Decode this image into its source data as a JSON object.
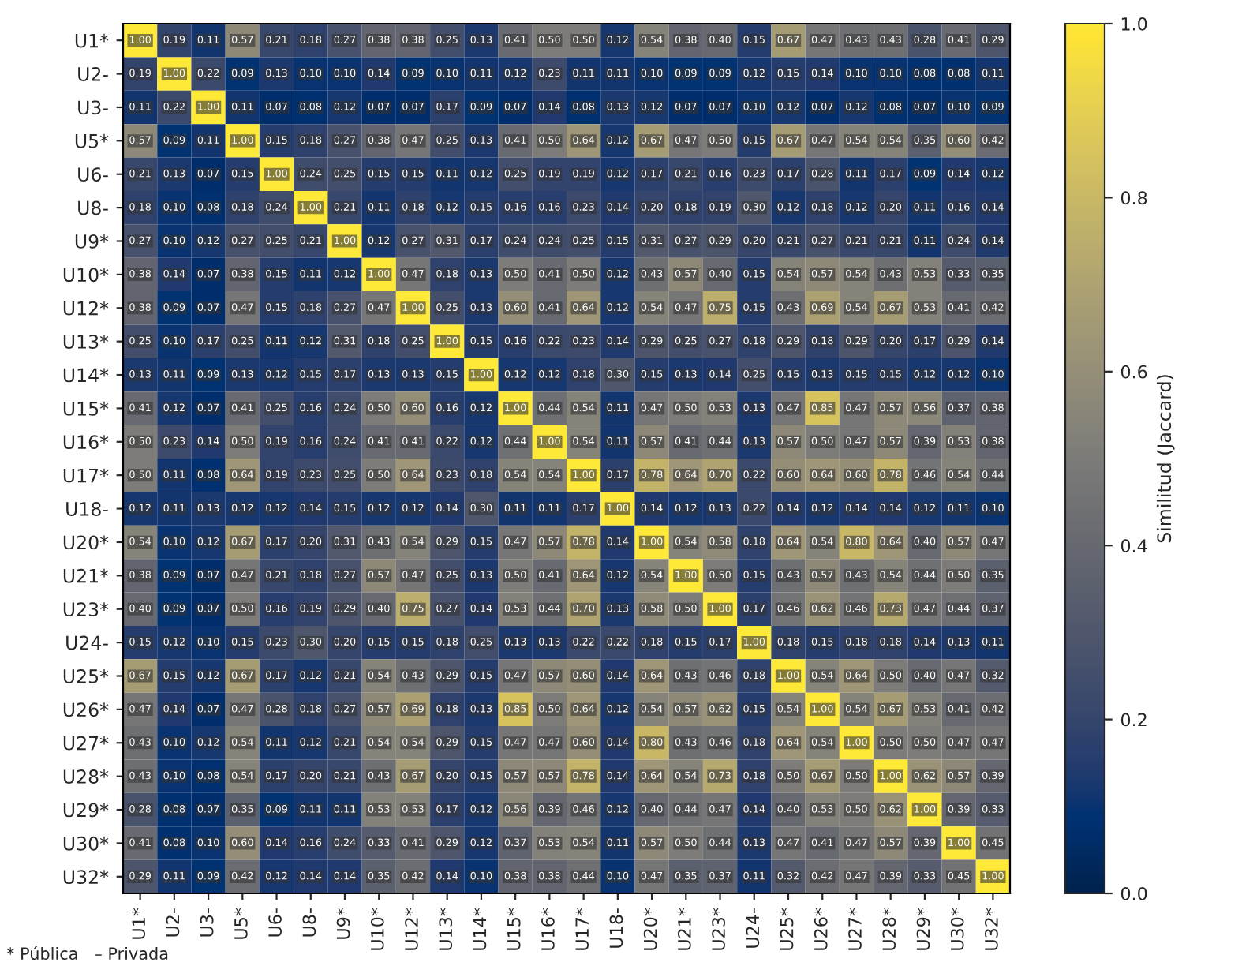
{
  "chart_data": {
    "type": "heatmap",
    "clabel": "Similitud (Jaccard)",
    "clim": [
      0,
      1
    ],
    "cticks": [
      {
        "value": 0,
        "label": "0.0"
      },
      {
        "value": 0.2,
        "label": "0.2"
      },
      {
        "value": 0.4,
        "label": "0.4"
      },
      {
        "value": 0.6,
        "label": "0.6"
      },
      {
        "value": 0.8,
        "label": "0.8"
      },
      {
        "value": 1,
        "label": "1.0"
      }
    ],
    "cell_labels": [
      [
        "1.00",
        "0.19",
        "0.11",
        "0.57",
        "0.21",
        "0.18",
        "0.27",
        "0.38",
        "0.38",
        "0.25",
        "0.13",
        "0.41",
        "0.50",
        "0.50",
        "0.12",
        "0.54",
        "0.38",
        "0.40",
        "0.15",
        "0.67",
        "0.47",
        "0.43",
        "0.43",
        "0.28",
        "0.41",
        "0.29"
      ],
      [
        "0.19",
        "1.00",
        "0.22",
        "0.09",
        "0.13",
        "0.10",
        "0.10",
        "0.14",
        "0.09",
        "0.10",
        "0.11",
        "0.12",
        "0.23",
        "0.11",
        "0.11",
        "0.10",
        "0.09",
        "0.09",
        "0.12",
        "0.15",
        "0.14",
        "0.10",
        "0.10",
        "0.08",
        "0.08",
        "0.11"
      ],
      [
        "0.11",
        "0.22",
        "1.00",
        "0.11",
        "0.07",
        "0.08",
        "0.12",
        "0.07",
        "0.07",
        "0.17",
        "0.09",
        "0.07",
        "0.14",
        "0.08",
        "0.13",
        "0.12",
        "0.07",
        "0.07",
        "0.10",
        "0.12",
        "0.07",
        "0.12",
        "0.08",
        "0.07",
        "0.10",
        "0.09"
      ],
      [
        "0.57",
        "0.09",
        "0.11",
        "1.00",
        "0.15",
        "0.18",
        "0.27",
        "0.38",
        "0.47",
        "0.25",
        "0.13",
        "0.41",
        "0.50",
        "0.64",
        "0.12",
        "0.67",
        "0.47",
        "0.50",
        "0.15",
        "0.67",
        "0.47",
        "0.54",
        "0.54",
        "0.35",
        "0.60",
        "0.42"
      ],
      [
        "0.21",
        "0.13",
        "0.07",
        "0.15",
        "1.00",
        "0.24",
        "0.25",
        "0.15",
        "0.15",
        "0.11",
        "0.12",
        "0.25",
        "0.19",
        "0.19",
        "0.12",
        "0.17",
        "0.21",
        "0.16",
        "0.23",
        "0.17",
        "0.28",
        "0.11",
        "0.17",
        "0.09",
        "0.14",
        "0.12"
      ],
      [
        "0.18",
        "0.10",
        "0.08",
        "0.18",
        "0.24",
        "1.00",
        "0.21",
        "0.11",
        "0.18",
        "0.12",
        "0.15",
        "0.16",
        "0.16",
        "0.23",
        "0.14",
        "0.20",
        "0.18",
        "0.19",
        "0.30",
        "0.12",
        "0.18",
        "0.12",
        "0.20",
        "0.11",
        "0.16",
        "0.14"
      ],
      [
        "0.27",
        "0.10",
        "0.12",
        "0.27",
        "0.25",
        "0.21",
        "1.00",
        "0.12",
        "0.27",
        "0.31",
        "0.17",
        "0.24",
        "0.24",
        "0.25",
        "0.15",
        "0.31",
        "0.27",
        "0.29",
        "0.20",
        "0.21",
        "0.27",
        "0.21",
        "0.21",
        "0.11",
        "0.24",
        "0.14"
      ],
      [
        "0.38",
        "0.14",
        "0.07",
        "0.38",
        "0.15",
        "0.11",
        "0.12",
        "1.00",
        "0.47",
        "0.18",
        "0.13",
        "0.50",
        "0.41",
        "0.50",
        "0.12",
        "0.43",
        "0.57",
        "0.40",
        "0.15",
        "0.54",
        "0.57",
        "0.54",
        "0.43",
        "0.53",
        "0.33",
        "0.35"
      ],
      [
        "0.38",
        "0.09",
        "0.07",
        "0.47",
        "0.15",
        "0.18",
        "0.27",
        "0.47",
        "1.00",
        "0.25",
        "0.13",
        "0.60",
        "0.41",
        "0.64",
        "0.12",
        "0.54",
        "0.47",
        "0.75",
        "0.15",
        "0.43",
        "0.69",
        "0.54",
        "0.67",
        "0.53",
        "0.41",
        "0.42"
      ],
      [
        "0.25",
        "0.10",
        "0.17",
        "0.25",
        "0.11",
        "0.12",
        "0.31",
        "0.18",
        "0.25",
        "1.00",
        "0.15",
        "0.16",
        "0.22",
        "0.23",
        "0.14",
        "0.29",
        "0.25",
        "0.27",
        "0.18",
        "0.29",
        "0.18",
        "0.29",
        "0.20",
        "0.17",
        "0.29",
        "0.14"
      ],
      [
        "0.13",
        "0.11",
        "0.09",
        "0.13",
        "0.12",
        "0.15",
        "0.17",
        "0.13",
        "0.13",
        "0.15",
        "1.00",
        "0.12",
        "0.12",
        "0.18",
        "0.30",
        "0.15",
        "0.13",
        "0.14",
        "0.25",
        "0.15",
        "0.13",
        "0.15",
        "0.15",
        "0.12",
        "0.12",
        "0.10"
      ],
      [
        "0.41",
        "0.12",
        "0.07",
        "0.41",
        "0.25",
        "0.16",
        "0.24",
        "0.50",
        "0.60",
        "0.16",
        "0.12",
        "1.00",
        "0.44",
        "0.54",
        "0.11",
        "0.47",
        "0.50",
        "0.53",
        "0.13",
        "0.47",
        "0.85",
        "0.47",
        "0.57",
        "0.56",
        "0.37",
        "0.38"
      ],
      [
        "0.50",
        "0.23",
        "0.14",
        "0.50",
        "0.19",
        "0.16",
        "0.24",
        "0.41",
        "0.41",
        "0.22",
        "0.12",
        "0.44",
        "1.00",
        "0.54",
        "0.11",
        "0.57",
        "0.41",
        "0.44",
        "0.13",
        "0.57",
        "0.50",
        "0.47",
        "0.57",
        "0.39",
        "0.53",
        "0.38"
      ],
      [
        "0.50",
        "0.11",
        "0.08",
        "0.64",
        "0.19",
        "0.23",
        "0.25",
        "0.50",
        "0.64",
        "0.23",
        "0.18",
        "0.54",
        "0.54",
        "1.00",
        "0.17",
        "0.78",
        "0.64",
        "0.70",
        "0.22",
        "0.60",
        "0.64",
        "0.60",
        "0.78",
        "0.46",
        "0.54",
        "0.44"
      ],
      [
        "0.12",
        "0.11",
        "0.13",
        "0.12",
        "0.12",
        "0.14",
        "0.15",
        "0.12",
        "0.12",
        "0.14",
        "0.30",
        "0.11",
        "0.11",
        "0.17",
        "1.00",
        "0.14",
        "0.12",
        "0.13",
        "0.22",
        "0.14",
        "0.12",
        "0.14",
        "0.14",
        "0.12",
        "0.11",
        "0.10"
      ],
      [
        "0.54",
        "0.10",
        "0.12",
        "0.67",
        "0.17",
        "0.20",
        "0.31",
        "0.43",
        "0.54",
        "0.29",
        "0.15",
        "0.47",
        "0.57",
        "0.78",
        "0.14",
        "1.00",
        "0.54",
        "0.58",
        "0.18",
        "0.64",
        "0.54",
        "0.80",
        "0.64",
        "0.40",
        "0.57",
        "0.47"
      ],
      [
        "0.38",
        "0.09",
        "0.07",
        "0.47",
        "0.21",
        "0.18",
        "0.27",
        "0.57",
        "0.47",
        "0.25",
        "0.13",
        "0.50",
        "0.41",
        "0.64",
        "0.12",
        "0.54",
        "1.00",
        "0.50",
        "0.15",
        "0.43",
        "0.57",
        "0.43",
        "0.54",
        "0.44",
        "0.50",
        "0.35"
      ],
      [
        "0.40",
        "0.09",
        "0.07",
        "0.50",
        "0.16",
        "0.19",
        "0.29",
        "0.40",
        "0.75",
        "0.27",
        "0.14",
        "0.53",
        "0.44",
        "0.70",
        "0.13",
        "0.58",
        "0.50",
        "1.00",
        "0.17",
        "0.46",
        "0.62",
        "0.46",
        "0.73",
        "0.47",
        "0.44",
        "0.37"
      ],
      [
        "0.15",
        "0.12",
        "0.10",
        "0.15",
        "0.23",
        "0.30",
        "0.20",
        "0.15",
        "0.15",
        "0.18",
        "0.25",
        "0.13",
        "0.13",
        "0.22",
        "0.22",
        "0.18",
        "0.15",
        "0.17",
        "1.00",
        "0.18",
        "0.15",
        "0.18",
        "0.18",
        "0.14",
        "0.13",
        "0.11"
      ],
      [
        "0.67",
        "0.15",
        "0.12",
        "0.67",
        "0.17",
        "0.12",
        "0.21",
        "0.54",
        "0.43",
        "0.29",
        "0.15",
        "0.47",
        "0.57",
        "0.60",
        "0.14",
        "0.64",
        "0.43",
        "0.46",
        "0.18",
        "1.00",
        "0.54",
        "0.64",
        "0.50",
        "0.40",
        "0.47",
        "0.32"
      ],
      [
        "0.47",
        "0.14",
        "0.07",
        "0.47",
        "0.28",
        "0.18",
        "0.27",
        "0.57",
        "0.69",
        "0.18",
        "0.13",
        "0.85",
        "0.50",
        "0.64",
        "0.12",
        "0.54",
        "0.57",
        "0.62",
        "0.15",
        "0.54",
        "1.00",
        "0.54",
        "0.67",
        "0.53",
        "0.41",
        "0.42"
      ],
      [
        "0.43",
        "0.10",
        "0.12",
        "0.54",
        "0.11",
        "0.12",
        "0.21",
        "0.54",
        "0.54",
        "0.29",
        "0.15",
        "0.47",
        "0.47",
        "0.60",
        "0.14",
        "0.80",
        "0.43",
        "0.46",
        "0.18",
        "0.64",
        "0.54",
        "1.00",
        "0.50",
        "0.50",
        "0.47",
        "0.47"
      ],
      [
        "0.43",
        "0.10",
        "0.08",
        "0.54",
        "0.17",
        "0.20",
        "0.21",
        "0.43",
        "0.67",
        "0.20",
        "0.15",
        "0.57",
        "0.57",
        "0.78",
        "0.14",
        "0.64",
        "0.54",
        "0.73",
        "0.18",
        "0.50",
        "0.67",
        "0.50",
        "1.00",
        "0.62",
        "0.57",
        "0.39"
      ],
      [
        "0.28",
        "0.08",
        "0.07",
        "0.35",
        "0.09",
        "0.11",
        "0.11",
        "0.53",
        "0.53",
        "0.17",
        "0.12",
        "0.56",
        "0.39",
        "0.46",
        "0.12",
        "0.40",
        "0.44",
        "0.47",
        "0.14",
        "0.40",
        "0.53",
        "0.50",
        "0.62",
        "1.00",
        "0.39",
        "0.33"
      ],
      [
        "0.41",
        "0.08",
        "0.10",
        "0.60",
        "0.14",
        "0.16",
        "0.24",
        "0.33",
        "0.41",
        "0.29",
        "0.12",
        "0.37",
        "0.53",
        "0.54",
        "0.11",
        "0.57",
        "0.50",
        "0.44",
        "0.13",
        "0.47",
        "0.41",
        "0.47",
        "0.57",
        "0.39",
        "1.00",
        "0.45"
      ],
      [
        "0.29",
        "0.11",
        "0.09",
        "0.42",
        "0.12",
        "0.14",
        "0.14",
        "0.35",
        "0.42",
        "0.14",
        "0.10",
        "0.38",
        "0.38",
        "0.44",
        "0.10",
        "0.47",
        "0.35",
        "0.37",
        "0.11",
        "0.32",
        "0.42",
        "0.47",
        "0.39",
        "0.33",
        "0.45",
        "1.00"
      ]
    ],
    "annotations": [
      "* Pública   – Privada"
    ],
    "categories": [
      "U1*",
      "U2-",
      "U3-",
      "U5*",
      "U6-",
      "U8-",
      "U9*",
      "U10*",
      "U12*",
      "U13*",
      "U14*",
      "U15*",
      "U16*",
      "U17*",
      "U18-",
      "U20*",
      "U21*",
      "U23*",
      "U24-",
      "U25*",
      "U26*",
      "U27*",
      "U28*",
      "U29*",
      "U30*",
      "U32*"
    ],
    "y_categories": [
      "U1*",
      "U2-",
      "U3-",
      "U5*",
      "U6-",
      "U8-",
      "U9*",
      "U10*",
      "U12*",
      "U13*",
      "U14*",
      "U15*",
      "U16*",
      "U17*",
      "U18-",
      "U20*",
      "U21*",
      "U23*",
      "U24-",
      "U25*",
      "U26*",
      "U27*",
      "U28*",
      "U29*",
      "U30*",
      "U32*"
    ],
    "cells": [
      [
        1.0,
        0.19,
        0.11,
        0.57,
        0.21,
        0.18,
        0.27,
        0.38,
        0.38,
        0.25,
        0.13,
        0.41,
        0.5,
        0.5,
        0.12,
        0.54,
        0.38,
        0.4,
        0.15,
        0.67,
        0.47,
        0.43,
        0.43,
        0.28,
        0.41,
        0.29
      ],
      [
        0.19,
        1.0,
        0.22,
        0.09,
        0.13,
        0.1,
        0.1,
        0.14,
        0.09,
        0.1,
        0.11,
        0.12,
        0.23,
        0.11,
        0.11,
        0.1,
        0.09,
        0.09,
        0.12,
        0.15,
        0.14,
        0.1,
        0.1,
        0.08,
        0.08,
        0.11
      ],
      [
        0.11,
        0.22,
        1.0,
        0.11,
        0.07,
        0.08,
        0.12,
        0.07,
        0.07,
        0.17,
        0.09,
        0.07,
        0.14,
        0.08,
        0.13,
        0.12,
        0.07,
        0.07,
        0.1,
        0.12,
        0.07,
        0.12,
        0.08,
        0.07,
        0.1,
        0.09
      ],
      [
        0.57,
        0.09,
        0.11,
        1.0,
        0.15,
        0.18,
        0.27,
        0.38,
        0.47,
        0.25,
        0.13,
        0.41,
        0.5,
        0.64,
        0.12,
        0.67,
        0.47,
        0.5,
        0.15,
        0.67,
        0.47,
        0.54,
        0.54,
        0.35,
        0.6,
        0.42
      ],
      [
        0.21,
        0.13,
        0.07,
        0.15,
        1.0,
        0.24,
        0.25,
        0.15,
        0.15,
        0.11,
        0.12,
        0.25,
        0.19,
        0.19,
        0.12,
        0.17,
        0.21,
        0.16,
        0.23,
        0.17,
        0.28,
        0.11,
        0.17,
        0.09,
        0.14,
        0.12
      ],
      [
        0.18,
        0.1,
        0.08,
        0.18,
        0.24,
        1.0,
        0.21,
        0.11,
        0.18,
        0.12,
        0.15,
        0.16,
        0.16,
        0.23,
        0.14,
        0.2,
        0.18,
        0.19,
        0.3,
        0.12,
        0.18,
        0.12,
        0.2,
        0.11,
        0.16,
        0.14
      ],
      [
        0.27,
        0.1,
        0.12,
        0.27,
        0.25,
        0.21,
        1.0,
        0.12,
        0.27,
        0.31,
        0.17,
        0.24,
        0.24,
        0.25,
        0.15,
        0.31,
        0.27,
        0.29,
        0.2,
        0.21,
        0.27,
        0.21,
        0.21,
        0.11,
        0.24,
        0.14
      ],
      [
        0.38,
        0.14,
        0.07,
        0.38,
        0.15,
        0.11,
        0.12,
        1.0,
        0.47,
        0.18,
        0.13,
        0.5,
        0.41,
        0.5,
        0.12,
        0.43,
        0.57,
        0.4,
        0.15,
        0.54,
        0.57,
        0.54,
        0.43,
        0.53,
        0.33,
        0.35
      ],
      [
        0.38,
        0.09,
        0.07,
        0.47,
        0.15,
        0.18,
        0.27,
        0.47,
        1.0,
        0.25,
        0.13,
        0.6,
        0.41,
        0.64,
        0.12,
        0.54,
        0.47,
        0.75,
        0.15,
        0.43,
        0.69,
        0.54,
        0.67,
        0.53,
        0.41,
        0.42
      ],
      [
        0.25,
        0.1,
        0.17,
        0.25,
        0.11,
        0.12,
        0.31,
        0.18,
        0.25,
        1.0,
        0.15,
        0.16,
        0.22,
        0.23,
        0.14,
        0.29,
        0.25,
        0.27,
        0.18,
        0.29,
        0.18,
        0.29,
        0.2,
        0.17,
        0.29,
        0.14
      ],
      [
        0.13,
        0.11,
        0.09,
        0.13,
        0.12,
        0.15,
        0.17,
        0.13,
        0.13,
        0.15,
        1.0,
        0.12,
        0.12,
        0.18,
        0.3,
        0.15,
        0.13,
        0.14,
        0.25,
        0.15,
        0.13,
        0.15,
        0.15,
        0.12,
        0.12,
        0.1
      ],
      [
        0.41,
        0.12,
        0.07,
        0.41,
        0.25,
        0.16,
        0.24,
        0.5,
        0.6,
        0.16,
        0.12,
        1.0,
        0.44,
        0.54,
        0.11,
        0.47,
        0.5,
        0.53,
        0.13,
        0.47,
        0.85,
        0.47,
        0.57,
        0.56,
        0.37,
        0.38
      ],
      [
        0.5,
        0.23,
        0.14,
        0.5,
        0.19,
        0.16,
        0.24,
        0.41,
        0.41,
        0.22,
        0.12,
        0.44,
        1.0,
        0.54,
        0.11,
        0.57,
        0.41,
        0.44,
        0.13,
        0.57,
        0.5,
        0.47,
        0.57,
        0.39,
        0.53,
        0.38
      ],
      [
        0.5,
        0.11,
        0.08,
        0.64,
        0.19,
        0.23,
        0.25,
        0.5,
        0.64,
        0.23,
        0.18,
        0.54,
        0.54,
        1.0,
        0.17,
        0.78,
        0.64,
        0.7,
        0.22,
        0.6,
        0.64,
        0.6,
        0.78,
        0.46,
        0.54,
        0.44
      ],
      [
        0.12,
        0.11,
        0.13,
        0.12,
        0.12,
        0.14,
        0.15,
        0.12,
        0.12,
        0.14,
        0.3,
        0.11,
        0.11,
        0.17,
        1.0,
        0.14,
        0.12,
        0.13,
        0.22,
        0.14,
        0.12,
        0.14,
        0.14,
        0.12,
        0.11,
        0.1
      ],
      [
        0.54,
        0.1,
        0.12,
        0.67,
        0.17,
        0.2,
        0.31,
        0.43,
        0.54,
        0.29,
        0.15,
        0.47,
        0.57,
        0.78,
        0.14,
        1.0,
        0.54,
        0.58,
        0.18,
        0.64,
        0.54,
        0.8,
        0.64,
        0.4,
        0.57,
        0.47
      ],
      [
        0.38,
        0.09,
        0.07,
        0.47,
        0.21,
        0.18,
        0.27,
        0.57,
        0.47,
        0.25,
        0.13,
        0.5,
        0.41,
        0.64,
        0.12,
        0.54,
        1.0,
        0.5,
        0.15,
        0.43,
        0.57,
        0.43,
        0.54,
        0.44,
        0.5,
        0.35
      ],
      [
        0.4,
        0.09,
        0.07,
        0.5,
        0.16,
        0.19,
        0.29,
        0.4,
        0.75,
        0.27,
        0.14,
        0.53,
        0.44,
        0.7,
        0.13,
        0.58,
        0.5,
        1.0,
        0.17,
        0.46,
        0.62,
        0.46,
        0.73,
        0.47,
        0.44,
        0.37
      ],
      [
        0.15,
        0.12,
        0.1,
        0.15,
        0.23,
        0.3,
        0.2,
        0.15,
        0.15,
        0.18,
        0.25,
        0.13,
        0.13,
        0.22,
        0.22,
        0.18,
        0.15,
        0.17,
        1.0,
        0.18,
        0.15,
        0.18,
        0.18,
        0.14,
        0.13,
        0.11
      ],
      [
        0.67,
        0.15,
        0.12,
        0.67,
        0.17,
        0.12,
        0.21,
        0.54,
        0.43,
        0.29,
        0.15,
        0.47,
        0.57,
        0.6,
        0.14,
        0.64,
        0.43,
        0.46,
        0.18,
        1.0,
        0.54,
        0.64,
        0.5,
        0.4,
        0.47,
        0.32
      ],
      [
        0.47,
        0.14,
        0.07,
        0.47,
        0.28,
        0.18,
        0.27,
        0.57,
        0.69,
        0.18,
        0.13,
        0.85,
        0.5,
        0.64,
        0.12,
        0.54,
        0.57,
        0.62,
        0.15,
        0.54,
        1.0,
        0.54,
        0.67,
        0.53,
        0.41,
        0.42
      ],
      [
        0.43,
        0.1,
        0.12,
        0.54,
        0.11,
        0.12,
        0.21,
        0.54,
        0.54,
        0.29,
        0.15,
        0.47,
        0.47,
        0.6,
        0.14,
        0.8,
        0.43,
        0.46,
        0.18,
        0.64,
        0.54,
        1.0,
        0.5,
        0.5,
        0.47,
        0.47
      ],
      [
        0.43,
        0.1,
        0.08,
        0.54,
        0.17,
        0.2,
        0.21,
        0.43,
        0.67,
        0.2,
        0.15,
        0.57,
        0.57,
        0.78,
        0.14,
        0.64,
        0.54,
        0.73,
        0.18,
        0.5,
        0.67,
        0.5,
        1.0,
        0.62,
        0.57,
        0.39
      ],
      [
        0.28,
        0.08,
        0.07,
        0.35,
        0.09,
        0.11,
        0.11,
        0.53,
        0.53,
        0.17,
        0.12,
        0.56,
        0.39,
        0.46,
        0.12,
        0.4,
        0.44,
        0.47,
        0.14,
        0.4,
        0.53,
        0.5,
        0.62,
        1.0,
        0.39,
        0.33
      ],
      [
        0.41,
        0.08,
        0.1,
        0.6,
        0.14,
        0.16,
        0.24,
        0.33,
        0.41,
        0.29,
        0.12,
        0.37,
        0.53,
        0.54,
        0.11,
        0.57,
        0.5,
        0.44,
        0.13,
        0.47,
        0.41,
        0.47,
        0.57,
        0.39,
        1.0,
        0.45
      ],
      [
        0.29,
        0.11,
        0.09,
        0.42,
        0.12,
        0.14,
        0.14,
        0.35,
        0.42,
        0.14,
        0.1,
        0.38,
        0.38,
        0.44,
        0.1,
        0.47,
        0.35,
        0.37,
        0.11,
        0.32,
        0.42,
        0.47,
        0.39,
        0.33,
        0.45,
        1.0
      ]
    ]
  }
}
